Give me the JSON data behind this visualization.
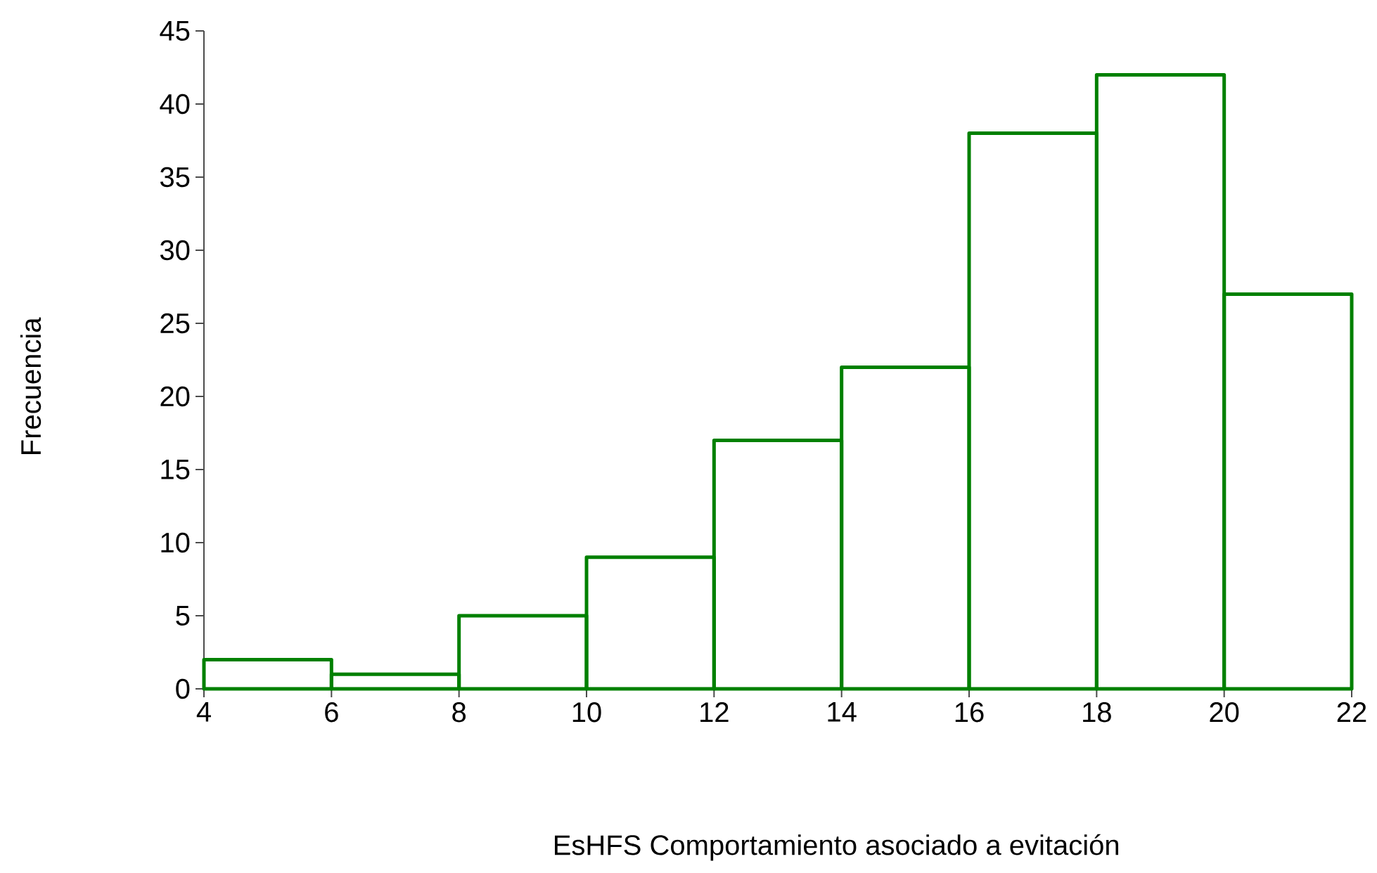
{
  "chart_data": {
    "type": "histogram",
    "xlabel": "EsHFS Comportamiento  asociado a evitación",
    "ylabel": "Frecuencia",
    "bins": [
      4,
      6,
      8,
      10,
      12,
      14,
      16,
      18,
      20,
      22
    ],
    "values": [
      2,
      1,
      5,
      9,
      17,
      22,
      38,
      42,
      27
    ],
    "color": "#008000",
    "xlim": [
      4,
      22
    ],
    "ylim": [
      0,
      45
    ],
    "xticks": [
      4,
      6,
      8,
      10,
      12,
      14,
      16,
      18,
      20,
      22
    ],
    "yticks": [
      0,
      5,
      10,
      15,
      20,
      25,
      30,
      35,
      40,
      45
    ]
  }
}
